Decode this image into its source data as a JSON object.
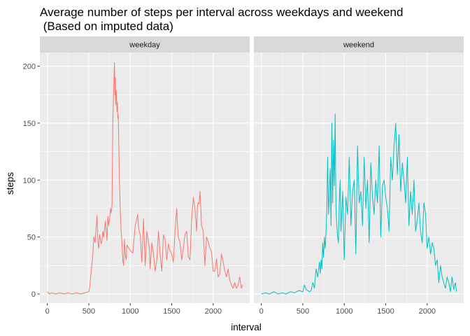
{
  "chart_data": {
    "type": "line",
    "title": "Average number of steps per interval across weekdays and weekend\n (Based on imputed data)",
    "xlabel": "interval",
    "ylabel": "steps",
    "xlim": [
      -90,
      2440
    ],
    "ylim": [
      -8,
      212
    ],
    "xticks": [
      0,
      500,
      1000,
      1500,
      2000
    ],
    "yticks": [
      0,
      50,
      100,
      150,
      200
    ],
    "panels": [
      {
        "label": "weekday",
        "color": "#F8766D",
        "x": [
          0,
          25,
          50,
          100,
          150,
          200,
          250,
          300,
          350,
          400,
          450,
          500,
          510,
          530,
          550,
          560,
          575,
          600,
          610,
          620,
          630,
          640,
          650,
          660,
          670,
          680,
          700,
          710,
          720,
          730,
          740,
          750,
          760,
          770,
          780,
          790,
          800,
          810,
          815,
          820,
          825,
          830,
          835,
          840,
          845,
          850,
          855,
          860,
          870,
          880,
          890,
          900,
          910,
          920,
          930,
          940,
          950,
          960,
          1000,
          1030,
          1060,
          1090,
          1100,
          1120,
          1140,
          1160,
          1180,
          1200,
          1220,
          1230,
          1240,
          1260,
          1280,
          1300,
          1320,
          1340,
          1360,
          1380,
          1400,
          1420,
          1440,
          1460,
          1480,
          1500,
          1520,
          1540,
          1550,
          1560,
          1570,
          1580,
          1600,
          1620,
          1640,
          1660,
          1680,
          1700,
          1720,
          1740,
          1760,
          1780,
          1800,
          1810,
          1820,
          1830,
          1840,
          1850,
          1860,
          1880,
          1900,
          1920,
          1940,
          1960,
          1980,
          2000,
          2020,
          2040,
          2060,
          2080,
          2100,
          2120,
          2140,
          2160,
          2180,
          2200,
          2220,
          2240,
          2260,
          2280,
          2300,
          2320,
          2340,
          2355
        ],
        "y": [
          2,
          0,
          1,
          0,
          1,
          0,
          1,
          0,
          1,
          0,
          1,
          2,
          6,
          20,
          36,
          50,
          45,
          69,
          45,
          40,
          52,
          48,
          44,
          48,
          55,
          50,
          64,
          55,
          47,
          68,
          60,
          65,
          75,
          71,
          78,
          150,
          180,
          203,
          175,
          190,
          166,
          178,
          172,
          160,
          168,
          154,
          157,
          140,
          100,
          72,
          55,
          45,
          29,
          25,
          48,
          35,
          30,
          43,
          38,
          36,
          60,
          70,
          58,
          52,
          28,
          66,
          25,
          55,
          45,
          40,
          22,
          45,
          35,
          20,
          30,
          55,
          35,
          20,
          52,
          48,
          30,
          44,
          38,
          35,
          28,
          55,
          66,
          75,
          60,
          50,
          45,
          30,
          40,
          52,
          55,
          33,
          30,
          65,
          85,
          75,
          55,
          77,
          80,
          79,
          90,
          77,
          60,
          55,
          25,
          50,
          46,
          40,
          37,
          20,
          20,
          31,
          15,
          18,
          35,
          28,
          20,
          15,
          22,
          12,
          8,
          5,
          10,
          5,
          8,
          15,
          5,
          8
        ]
      },
      {
        "label": "weekend",
        "color": "#00BFC4",
        "x": [
          0,
          50,
          100,
          150,
          200,
          250,
          300,
          350,
          400,
          450,
          500,
          520,
          540,
          560,
          580,
          600,
          620,
          640,
          660,
          680,
          700,
          710,
          720,
          730,
          740,
          750,
          760,
          770,
          780,
          790,
          800,
          810,
          820,
          830,
          840,
          850,
          860,
          870,
          880,
          890,
          900,
          910,
          920,
          930,
          940,
          950,
          960,
          980,
          1000,
          1020,
          1040,
          1060,
          1080,
          1100,
          1120,
          1140,
          1160,
          1180,
          1200,
          1220,
          1240,
          1260,
          1280,
          1300,
          1320,
          1340,
          1360,
          1380,
          1400,
          1420,
          1440,
          1460,
          1480,
          1500,
          1520,
          1540,
          1560,
          1580,
          1600,
          1620,
          1640,
          1660,
          1680,
          1700,
          1720,
          1740,
          1760,
          1780,
          1800,
          1820,
          1840,
          1860,
          1880,
          1900,
          1920,
          1940,
          1960,
          1980,
          2000,
          2020,
          2040,
          2060,
          2080,
          2100,
          2120,
          2140,
          2160,
          2180,
          2200,
          2220,
          2240,
          2260,
          2280,
          2300,
          2320,
          2340,
          2355
        ],
        "y": [
          0,
          1,
          0,
          2,
          0,
          1,
          0,
          2,
          1,
          3,
          2,
          8,
          4,
          3,
          2,
          3,
          10,
          5,
          22,
          15,
          28,
          18,
          30,
          22,
          45,
          32,
          50,
          40,
          55,
          75,
          120,
          70,
          90,
          110,
          60,
          150,
          80,
          135,
          95,
          158,
          75,
          60,
          50,
          45,
          80,
          100,
          55,
          90,
          30,
          85,
          70,
          120,
          60,
          90,
          100,
          35,
          130,
          80,
          90,
          60,
          120,
          75,
          100,
          45,
          115,
          85,
          70,
          100,
          80,
          130,
          50,
          95,
          100,
          85,
          75,
          55,
          120,
          100,
          130,
          150,
          105,
          140,
          90,
          115,
          100,
          80,
          120,
          60,
          90,
          70,
          100,
          55,
          65,
          80,
          55,
          45,
          80,
          70,
          40,
          50,
          35,
          45,
          40,
          25,
          30,
          10,
          25,
          15,
          10,
          5,
          15,
          10,
          2,
          15,
          4,
          10,
          2
        ]
      }
    ]
  }
}
